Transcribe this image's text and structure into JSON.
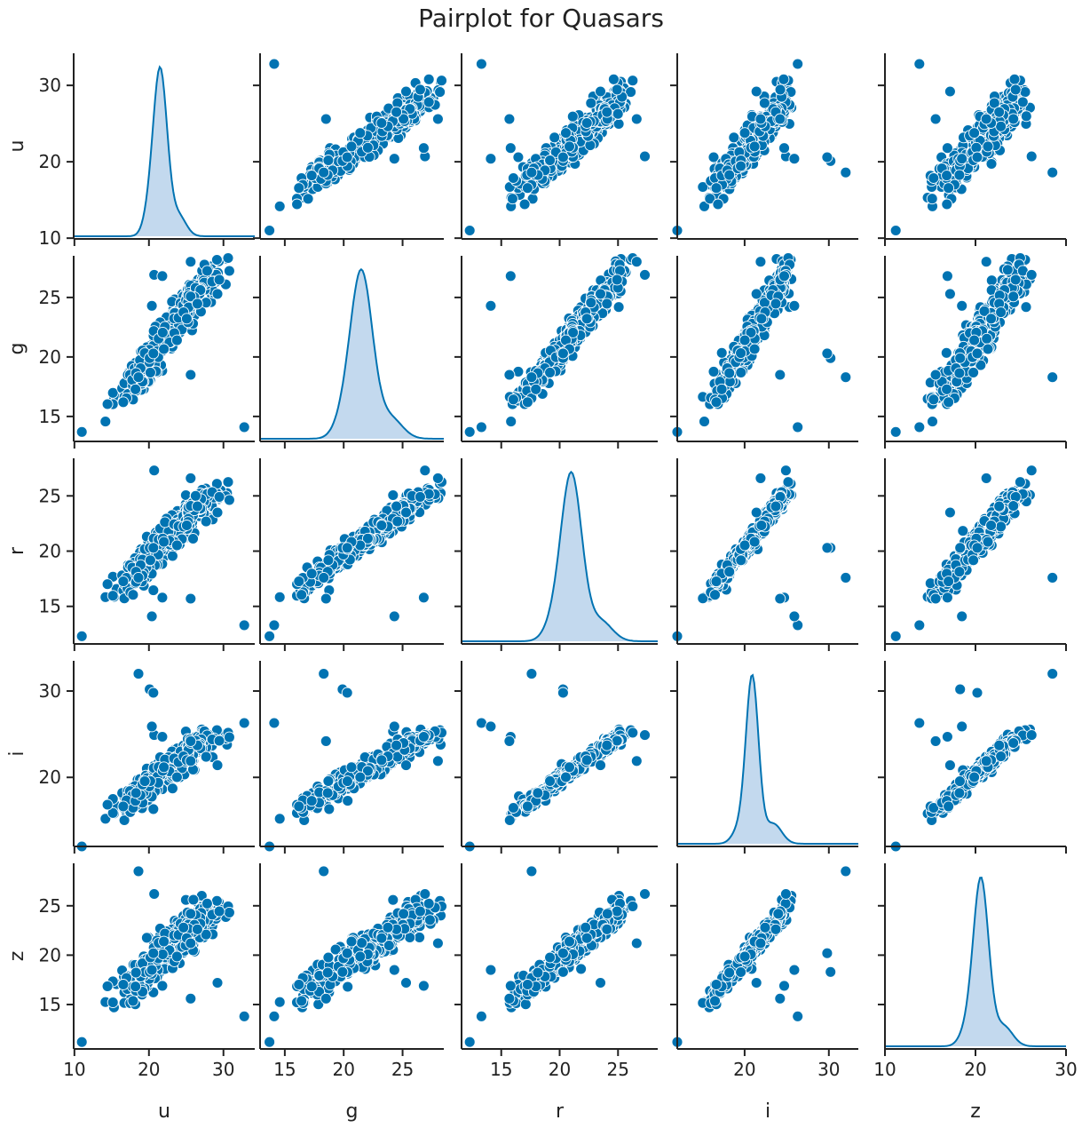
{
  "title": "Pairplot for Quasars",
  "colors": {
    "marker": "#0173b2",
    "kde_fill": "#c3d9ee",
    "kde_line": "#0173b2",
    "axis": "#222222",
    "marker_edge": "#ffffff"
  },
  "chart_data": {
    "type": "pairplot",
    "variables": [
      "u",
      "g",
      "r",
      "i",
      "z"
    ],
    "diag_kind": "kde",
    "grid": false,
    "ranges": {
      "u": [
        9.9,
        34.2
      ],
      "g": [
        12.9,
        28.5
      ],
      "r": [
        11.6,
        28.4
      ],
      "i": [
        12.0,
        33.5
      ],
      "z": [
        10.0,
        30.0
      ]
    },
    "ticks": {
      "u": [
        10,
        20,
        30
      ],
      "g": [
        15,
        20,
        25
      ],
      "r": [
        15,
        20,
        25
      ],
      "i": [
        20,
        30
      ],
      "z": [
        10,
        20,
        30
      ]
    },
    "y_ticks": {
      "u": [
        10,
        20,
        30
      ],
      "g": [
        15,
        20,
        25
      ],
      "r": [
        15,
        20,
        25
      ],
      "i": [
        20,
        30
      ],
      "z": [
        15,
        20,
        25
      ]
    },
    "y_ranges": {
      "u": [
        9.9,
        34.2
      ],
      "g": [
        12.9,
        28.5
      ],
      "r": [
        11.6,
        28.4
      ],
      "i": [
        12.0,
        33.5
      ],
      "z": [
        10.5,
        29.3
      ]
    },
    "kde_peaks": {
      "u": 21.5,
      "g": 21.5,
      "r": 21.0,
      "i": 20.9,
      "z": 20.6
    },
    "kde_widths": {
      "u": 0.95,
      "g": 0.95,
      "r": 0.9,
      "i": 0.75,
      "z": 0.85
    },
    "outliers": [
      {
        "u": 11.0,
        "g": 13.7,
        "r": 12.3,
        "i": 12.0,
        "z": 11.2
      },
      {
        "u": 32.8,
        "g": 14.1,
        "r": 13.3,
        "i": 26.3,
        "z": 13.8
      },
      {
        "u": 18.6,
        "g": 18.3,
        "r": 17.6,
        "i": 32.0,
        "z": 28.5
      },
      {
        "u": 20.1,
        "g": 19.9,
        "r": 20.3,
        "i": 30.2,
        "z": 18.3
      },
      {
        "u": 20.6,
        "g": 20.3,
        "r": 20.3,
        "i": 29.8,
        "z": 20.2
      },
      {
        "u": 20.7,
        "g": 26.9,
        "r": 27.3,
        "i": 24.9,
        "z": 26.2
      },
      {
        "u": 29.2,
        "g": 25.3,
        "r": 23.5,
        "i": 21.4,
        "z": 17.2
      },
      {
        "u": 25.6,
        "g": 28.0,
        "r": 26.6,
        "i": 21.9,
        "z": 21.2
      },
      {
        "u": 20.4,
        "g": 24.3,
        "r": 14.1,
        "i": 25.9,
        "z": 18.5
      },
      {
        "u": 21.8,
        "g": 26.8,
        "r": 15.8,
        "i": 24.7,
        "z": 16.9
      },
      {
        "u": 25.6,
        "g": 18.5,
        "r": 15.7,
        "i": 24.2,
        "z": 15.6
      }
    ]
  }
}
